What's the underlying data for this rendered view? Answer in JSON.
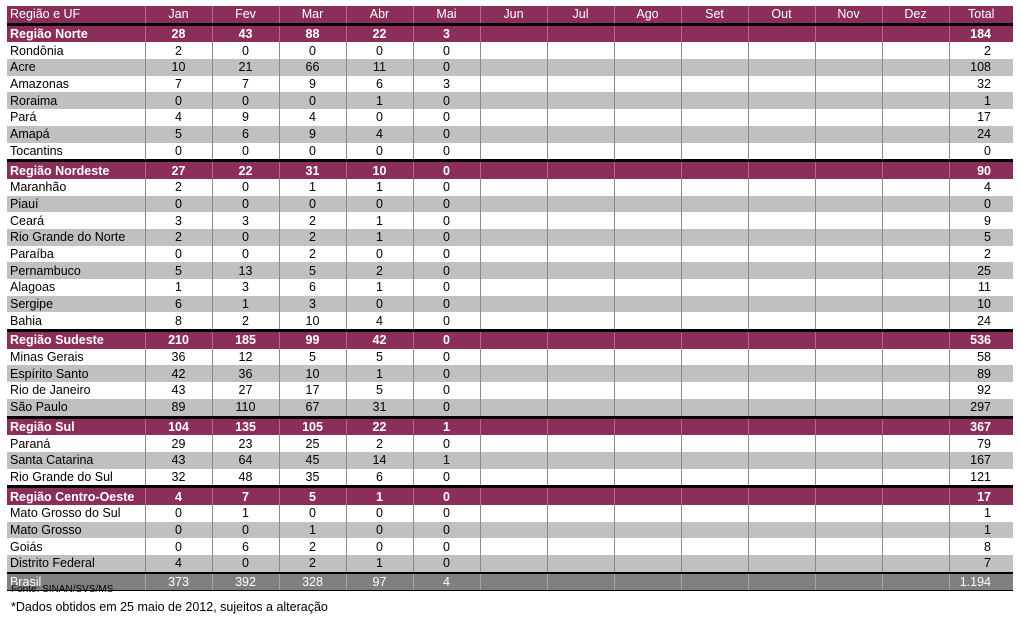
{
  "header": [
    "Região e UF",
    "Jan",
    "Fev",
    "Mar",
    "Abr",
    "Mai",
    "Jun",
    "Jul",
    "Ago",
    "Set",
    "Out",
    "Nov",
    "Dez",
    "Total"
  ],
  "rows": [
    {
      "type": "region",
      "cells": [
        "Região Norte",
        "28",
        "43",
        "88",
        "22",
        "3",
        "",
        "",
        "",
        "",
        "",
        "",
        "",
        "184"
      ]
    },
    {
      "type": "state",
      "cells": [
        "Rondônia",
        "2",
        "0",
        "0",
        "0",
        "0",
        "",
        "",
        "",
        "",
        "",
        "",
        "",
        "2"
      ]
    },
    {
      "type": "state",
      "cells": [
        "Acre",
        "10",
        "21",
        "66",
        "11",
        "0",
        "",
        "",
        "",
        "",
        "",
        "",
        "",
        "108"
      ]
    },
    {
      "type": "state",
      "cells": [
        "Amazonas",
        "7",
        "7",
        "9",
        "6",
        "3",
        "",
        "",
        "",
        "",
        "",
        "",
        "",
        "32"
      ]
    },
    {
      "type": "state",
      "cells": [
        "Roraima",
        "0",
        "0",
        "0",
        "1",
        "0",
        "",
        "",
        "",
        "",
        "",
        "",
        "",
        "1"
      ]
    },
    {
      "type": "state",
      "cells": [
        "Pará",
        "4",
        "9",
        "4",
        "0",
        "0",
        "",
        "",
        "",
        "",
        "",
        "",
        "",
        "17"
      ]
    },
    {
      "type": "state",
      "cells": [
        "Amapá",
        "5",
        "6",
        "9",
        "4",
        "0",
        "",
        "",
        "",
        "",
        "",
        "",
        "",
        "24"
      ]
    },
    {
      "type": "state",
      "cells": [
        "Tocantins",
        "0",
        "0",
        "0",
        "0",
        "0",
        "",
        "",
        "",
        "",
        "",
        "",
        "",
        "0"
      ]
    },
    {
      "type": "region",
      "cells": [
        "Região Nordeste",
        "27",
        "22",
        "31",
        "10",
        "0",
        "",
        "",
        "",
        "",
        "",
        "",
        "",
        "90"
      ]
    },
    {
      "type": "state",
      "cells": [
        "Maranhão",
        "2",
        "0",
        "1",
        "1",
        "0",
        "",
        "",
        "",
        "",
        "",
        "",
        "",
        "4"
      ]
    },
    {
      "type": "state",
      "cells": [
        "Piauí",
        "0",
        "0",
        "0",
        "0",
        "0",
        "",
        "",
        "",
        "",
        "",
        "",
        "",
        "0"
      ]
    },
    {
      "type": "state",
      "cells": [
        "Ceará",
        "3",
        "3",
        "2",
        "1",
        "0",
        "",
        "",
        "",
        "",
        "",
        "",
        "",
        "9"
      ]
    },
    {
      "type": "state",
      "cells": [
        "Rio Grande do Norte",
        "2",
        "0",
        "2",
        "1",
        "0",
        "",
        "",
        "",
        "",
        "",
        "",
        "",
        "5"
      ]
    },
    {
      "type": "state",
      "cells": [
        "Paraíba",
        "0",
        "0",
        "2",
        "0",
        "0",
        "",
        "",
        "",
        "",
        "",
        "",
        "",
        "2"
      ]
    },
    {
      "type": "state",
      "cells": [
        "Pernambuco",
        "5",
        "13",
        "5",
        "2",
        "0",
        "",
        "",
        "",
        "",
        "",
        "",
        "",
        "25"
      ]
    },
    {
      "type": "state",
      "cells": [
        "Alagoas",
        "1",
        "3",
        "6",
        "1",
        "0",
        "",
        "",
        "",
        "",
        "",
        "",
        "",
        "11"
      ]
    },
    {
      "type": "state",
      "cells": [
        "Sergipe",
        "6",
        "1",
        "3",
        "0",
        "0",
        "",
        "",
        "",
        "",
        "",
        "",
        "",
        "10"
      ]
    },
    {
      "type": "state",
      "cells": [
        "Bahia",
        "8",
        "2",
        "10",
        "4",
        "0",
        "",
        "",
        "",
        "",
        "",
        "",
        "",
        "24"
      ]
    },
    {
      "type": "region",
      "cells": [
        "Região Sudeste",
        "210",
        "185",
        "99",
        "42",
        "0",
        "",
        "",
        "",
        "",
        "",
        "",
        "",
        "536"
      ]
    },
    {
      "type": "state",
      "cells": [
        "Minas Gerais",
        "36",
        "12",
        "5",
        "5",
        "0",
        "",
        "",
        "",
        "",
        "",
        "",
        "",
        "58"
      ]
    },
    {
      "type": "state",
      "cells": [
        "Espírito Santo",
        "42",
        "36",
        "10",
        "1",
        "0",
        "",
        "",
        "",
        "",
        "",
        "",
        "",
        "89"
      ]
    },
    {
      "type": "state",
      "cells": [
        "Rio de Janeiro",
        "43",
        "27",
        "17",
        "5",
        "0",
        "",
        "",
        "",
        "",
        "",
        "",
        "",
        "92"
      ]
    },
    {
      "type": "state",
      "cells": [
        "São Paulo",
        "89",
        "110",
        "67",
        "31",
        "0",
        "",
        "",
        "",
        "",
        "",
        "",
        "",
        "297"
      ]
    },
    {
      "type": "region",
      "cells": [
        "Região Sul",
        "104",
        "135",
        "105",
        "22",
        "1",
        "",
        "",
        "",
        "",
        "",
        "",
        "",
        "367"
      ]
    },
    {
      "type": "state",
      "cells": [
        "Paraná",
        "29",
        "23",
        "25",
        "2",
        "0",
        "",
        "",
        "",
        "",
        "",
        "",
        "",
        "79"
      ]
    },
    {
      "type": "state",
      "cells": [
        "Santa Catarina",
        "43",
        "64",
        "45",
        "14",
        "1",
        "",
        "",
        "",
        "",
        "",
        "",
        "",
        "167"
      ]
    },
    {
      "type": "state",
      "cells": [
        "Rio Grande do Sul",
        "32",
        "48",
        "35",
        "6",
        "0",
        "",
        "",
        "",
        "",
        "",
        "",
        "",
        "121"
      ]
    },
    {
      "type": "region",
      "cells": [
        "Região Centro-Oeste",
        "4",
        "7",
        "5",
        "1",
        "0",
        "",
        "",
        "",
        "",
        "",
        "",
        "",
        "17"
      ]
    },
    {
      "type": "state",
      "cells": [
        "Mato Grosso do Sul",
        "0",
        "1",
        "0",
        "0",
        "0",
        "",
        "",
        "",
        "",
        "",
        "",
        "",
        "1"
      ]
    },
    {
      "type": "state",
      "cells": [
        "Mato Grosso",
        "0",
        "0",
        "1",
        "0",
        "0",
        "",
        "",
        "",
        "",
        "",
        "",
        "",
        "1"
      ]
    },
    {
      "type": "state",
      "cells": [
        "Goiás",
        "0",
        "6",
        "2",
        "0",
        "0",
        "",
        "",
        "",
        "",
        "",
        "",
        "",
        "8"
      ]
    },
    {
      "type": "state",
      "cells": [
        "Distrito Federal",
        "4",
        "0",
        "2",
        "1",
        "0",
        "",
        "",
        "",
        "",
        "",
        "",
        "",
        "7"
      ]
    },
    {
      "type": "total",
      "cells": [
        "Brasil",
        "373",
        "392",
        "328",
        "97",
        "4",
        "",
        "",
        "",
        "",
        "",
        "",
        "",
        "1.194"
      ]
    }
  ],
  "source": "Fonte: SINAN/SVS/MS",
  "footnote": "*Dados obtidos em 25 maio de 2012, sujeitos a alteração"
}
